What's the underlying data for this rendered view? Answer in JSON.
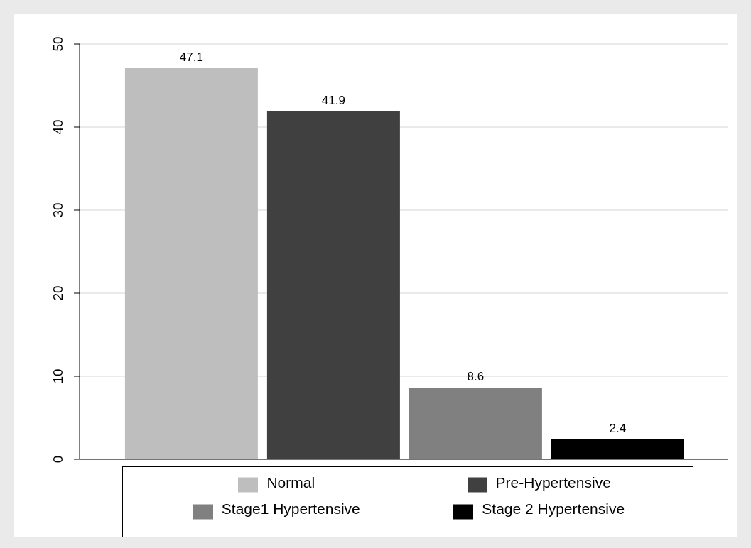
{
  "chart_data": {
    "type": "bar",
    "categories": [
      null
    ],
    "series": [
      {
        "name": "Normal",
        "color": "#bebebe",
        "values": [
          47.1
        ]
      },
      {
        "name": "Pre-Hypertensive",
        "color": "#404040",
        "values": [
          41.9
        ]
      },
      {
        "name": "Stage1 Hypertensive",
        "color": "#808080",
        "values": [
          8.6
        ]
      },
      {
        "name": "Stage 2 Hypertensive",
        "color": "#000000",
        "values": [
          2.4
        ]
      }
    ],
    "ylim": [
      0,
      50
    ],
    "yticks": [
      0,
      10,
      20,
      30,
      40,
      50
    ],
    "grid": "y",
    "legend": "bottom",
    "tick_labels": "y",
    "data_labels": true
  }
}
